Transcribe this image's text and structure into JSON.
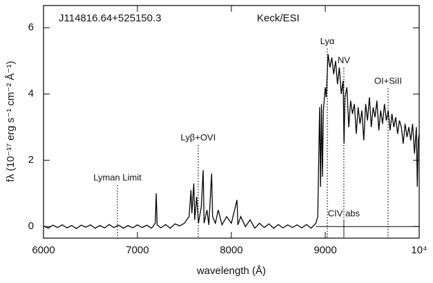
{
  "chart_data": {
    "type": "line",
    "title": "J114816.64+525150.3",
    "subtitle": "Keck/ESI",
    "xlabel": "wavelength (Å)",
    "ylabel": "fλ (10⁻¹⁷ erg s⁻¹ cm⁻² Å⁻¹)",
    "xlim": [
      6000,
      10000
    ],
    "ylim": [
      -0.35,
      6.67
    ],
    "xticks": [
      6000,
      7000,
      8000,
      9000,
      {
        "value": 10000,
        "label": "10⁴"
      }
    ],
    "yticks": [
      0,
      2,
      4,
      6
    ],
    "color": "#000000",
    "reference_line": {
      "y": 0,
      "xlim": [
        8900,
        10000
      ]
    },
    "annotations": [
      {
        "text": "Lyman Limit",
        "x": 6787,
        "y": 1.46
      },
      {
        "text": "Lyβ+OVI",
        "x": 7647,
        "y": 2.67
      },
      {
        "text": "Lyα",
        "x": 9022,
        "y": 5.58
      },
      {
        "text": "NV",
        "x": 9198,
        "y": 5.0
      },
      {
        "text": "OI+SiII",
        "x": 9669,
        "y": 4.38
      },
      {
        "text": "CIV abs",
        "x": 9198,
        "y": 0.375
      }
    ],
    "x": [
      6000,
      6050,
      6100,
      6150,
      6200,
      6250,
      6300,
      6350,
      6400,
      6450,
      6500,
      6550,
      6600,
      6650,
      6700,
      6750,
      6800,
      6850,
      6900,
      6950,
      7000,
      7050,
      7100,
      7150,
      7190,
      7200,
      7210,
      7250,
      7300,
      7350,
      7400,
      7450,
      7500,
      7550,
      7570,
      7580,
      7600,
      7610,
      7630,
      7650,
      7680,
      7700,
      7710,
      7740,
      7760,
      7790,
      7800,
      7830,
      7860,
      7900,
      7950,
      8000,
      8060,
      8070,
      8100,
      8150,
      8200,
      8250,
      8300,
      8350,
      8400,
      8450,
      8500,
      8550,
      8600,
      8650,
      8700,
      8750,
      8800,
      8850,
      8900,
      8920,
      8940,
      8950,
      8960,
      8970,
      8980,
      9000,
      9010,
      9030,
      9050,
      9070,
      9090,
      9110,
      9130,
      9150,
      9170,
      9190,
      9200,
      9210,
      9230,
      9250,
      9270,
      9290,
      9310,
      9330,
      9350,
      9370,
      9390,
      9410,
      9430,
      9450,
      9470,
      9490,
      9510,
      9530,
      9550,
      9570,
      9590,
      9610,
      9630,
      9650,
      9670,
      9690,
      9710,
      9730,
      9750,
      9770,
      9790,
      9810,
      9830,
      9850,
      9870,
      9890,
      9910,
      9930,
      9950,
      9970,
      9980,
      9990,
      10000
    ],
    "values": [
      0.02,
      -0.05,
      0.04,
      -0.03,
      0.05,
      -0.04,
      0.03,
      -0.06,
      0.04,
      -0.02,
      0.05,
      -0.05,
      0.03,
      -0.04,
      0.06,
      -0.03,
      0.04,
      -0.05,
      0.03,
      -0.04,
      0.05,
      -0.03,
      0.04,
      -0.05,
      0.1,
      1.0,
      0.05,
      -0.04,
      0.06,
      -0.05,
      0.08,
      0.02,
      0.1,
      0.3,
      1.1,
      0.4,
      1.3,
      0.2,
      0.9,
      0.1,
      0.6,
      1.7,
      0.1,
      0.5,
      0.05,
      1.6,
      0.3,
      0.1,
      0.5,
      0.05,
      0.3,
      0.1,
      0.8,
      0.05,
      0.3,
      0.0,
      0.2,
      -0.05,
      0.1,
      -0.03,
      0.08,
      -0.05,
      0.06,
      -0.04,
      0.05,
      -0.03,
      0.05,
      -0.04,
      0.06,
      -0.05,
      0.1,
      0.3,
      3.6,
      1.2,
      3.7,
      1.5,
      3.5,
      4.2,
      3.9,
      5.2,
      4.8,
      5.1,
      4.6,
      5.0,
      4.3,
      4.8,
      4.0,
      4.4,
      2.5,
      3.9,
      4.2,
      3.0,
      3.8,
      3.4,
      3.7,
      2.8,
      3.6,
      3.1,
      3.5,
      2.6,
      3.7,
      3.2,
      3.9,
      3.0,
      3.6,
      3.3,
      3.8,
      2.9,
      3.5,
      3.1,
      3.7,
      3.2,
      3.5,
      2.9,
      3.4,
      3.0,
      3.3,
      2.8,
      3.2,
      3.0,
      2.5,
      3.1,
      2.7,
      3.0,
      2.6,
      3.1,
      2.2,
      3.0,
      1.2,
      2.6,
      2.8
    ]
  }
}
